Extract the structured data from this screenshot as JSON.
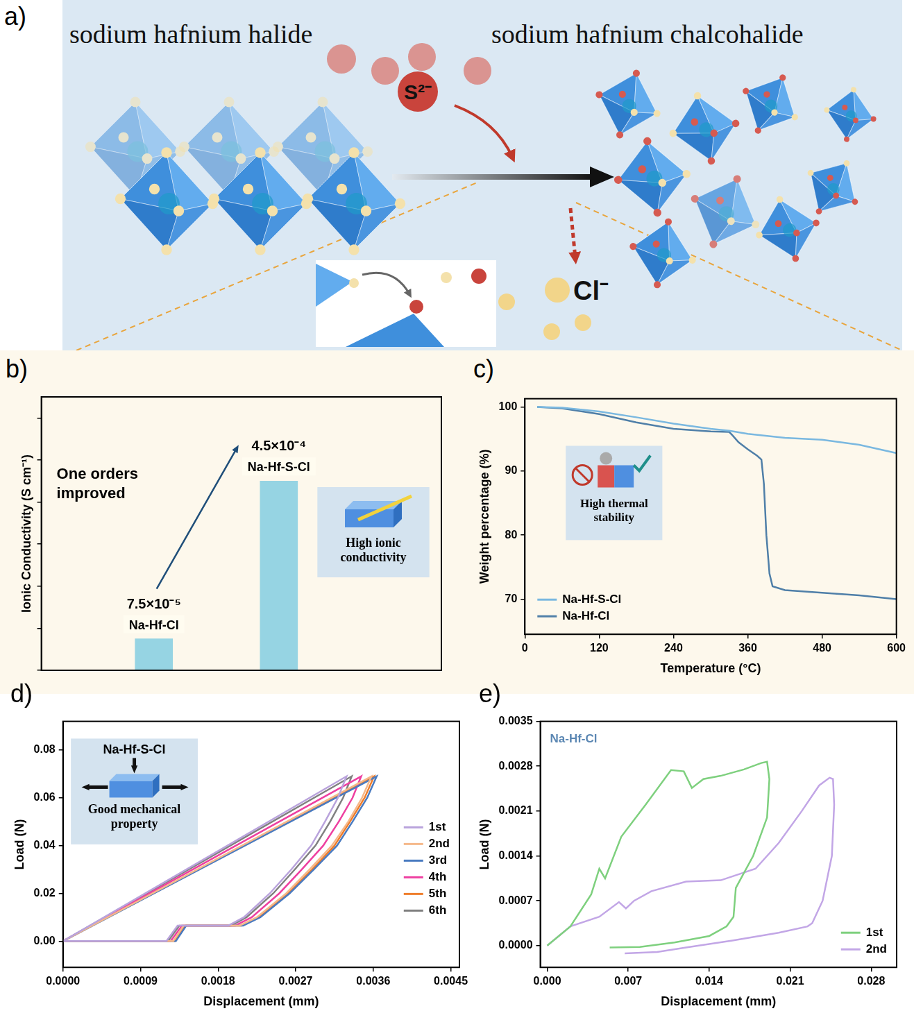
{
  "diagram": {
    "panel": "a)",
    "left_title": "sodium hafnium halide",
    "right_title": "sodium hafnium chalcohalide",
    "incoming_ion": "S²⁻",
    "leaving_ion": "Cl⁻"
  },
  "chart_data": [
    {
      "panel": "b)",
      "type": "bar",
      "y_label": "Ionic Conductivity (S cm⁻¹)",
      "categories": [
        "Na-Hf-Cl",
        "Na-Hf-S-Cl"
      ],
      "values": [
        7.5e-05,
        0.00045
      ],
      "value_labels": [
        "7.5×10⁻⁵",
        "4.5×10⁻⁴"
      ],
      "data_labels": true,
      "color": "#96d4e3",
      "ylim": [
        0,
        0.00065
      ],
      "yticks": [
        0,
        0.0001,
        0.0002,
        0.0003,
        0.0004,
        0.0005,
        0.0006
      ],
      "tick_labels": false,
      "grid": false,
      "annotation": "One orders improved",
      "inset": {
        "text": "High ionic conductivity"
      }
    },
    {
      "panel": "c)",
      "type": "line",
      "x_label": "Temperature (°C)",
      "y_label": "Weight percentage (%)",
      "xlim": [
        0,
        600
      ],
      "xticks": [
        0,
        120,
        240,
        360,
        480,
        600
      ],
      "ylim": [
        64.5,
        101.3
      ],
      "yticks": [
        70,
        80,
        90,
        100
      ],
      "grid": false,
      "legend": "lower left",
      "series": [
        {
          "name": "Na-Hf-S-Cl",
          "color": "#7ab8e0",
          "x": [
            20,
            60,
            120,
            180,
            240,
            300,
            330,
            360,
            420,
            480,
            540,
            600
          ],
          "values": [
            100,
            99.9,
            99.3,
            98.4,
            97.4,
            96.6,
            96.3,
            95.8,
            95.2,
            94.9,
            94.1,
            92.8
          ]
        },
        {
          "name": "Na-Hf-Cl",
          "color": "#4f7fa8",
          "x": [
            20,
            60,
            120,
            180,
            240,
            300,
            330,
            335,
            345,
            360,
            375,
            382,
            386,
            390,
            395,
            400,
            420,
            480,
            540,
            600
          ],
          "values": [
            100,
            99.8,
            98.9,
            97.6,
            96.6,
            96.2,
            96.1,
            95.6,
            94.5,
            93.4,
            92.4,
            91.8,
            88,
            80,
            74,
            72,
            71.4,
            71,
            70.6,
            70
          ]
        }
      ],
      "inset": {
        "text": "High thermal stability"
      }
    },
    {
      "panel": "d)",
      "type": "line",
      "x_label": "Displacement (mm)",
      "y_label": "Load (N)",
      "xlim": [
        0,
        0.0046
      ],
      "xticks": [
        {
          "value": 0,
          "label": "0.0000"
        },
        {
          "value": 0.0009,
          "label": "0.0009"
        },
        {
          "value": 0.0018,
          "label": "0.0018"
        },
        {
          "value": 0.0027,
          "label": "0.0027"
        },
        {
          "value": 0.0036,
          "label": "0.0036"
        },
        {
          "value": 0.0045,
          "label": "0.0045"
        }
      ],
      "ylim": [
        -0.011,
        0.092
      ],
      "yticks": [
        {
          "value": 0,
          "label": "0.00"
        },
        {
          "value": 0.02,
          "label": "0.02"
        },
        {
          "value": 0.04,
          "label": "0.04"
        },
        {
          "value": 0.06,
          "label": "0.06"
        },
        {
          "value": 0.08,
          "label": "0.08"
        }
      ],
      "grid": false,
      "legend": "right",
      "series": [
        {
          "name": "1st",
          "color": "#b9a3dc",
          "x": [
            0,
            0.001645,
            0.00329,
            0.00319,
            0.00304,
            0.00288,
            0.00265,
            0.0024,
            0.0021,
            0.00192,
            0.00133,
            0.0012,
            0
          ],
          "values": [
            0,
            0.0345,
            0.069,
            0.06,
            0.05,
            0.04,
            0.03,
            0.02,
            0.01,
            0.0065,
            0.0065,
            0,
            0
          ]
        },
        {
          "name": "2nd",
          "color": "#f5b88a",
          "x": [
            0,
            0.00179,
            0.00358,
            0.00347,
            0.00331,
            0.00312,
            0.00286,
            0.00259,
            0.00225,
            0.00205,
            0.0014,
            0.00128,
            0
          ],
          "values": [
            0,
            0.0345,
            0.069,
            0.06,
            0.05,
            0.04,
            0.03,
            0.02,
            0.01,
            0.0065,
            0.0065,
            0,
            0
          ]
        },
        {
          "name": "3rd",
          "color": "#4a7bc0",
          "x": [
            0,
            0.00182,
            0.00364,
            0.00353,
            0.00336,
            0.00318,
            0.00291,
            0.00263,
            0.00229,
            0.00209,
            0.00143,
            0.00131,
            0
          ],
          "values": [
            0,
            0.0345,
            0.069,
            0.06,
            0.05,
            0.04,
            0.03,
            0.02,
            0.01,
            0.0065,
            0.0065,
            0,
            0
          ]
        },
        {
          "name": "4th",
          "color": "#ee3fa0",
          "x": [
            0,
            0.00173,
            0.00346,
            0.00336,
            0.0032,
            0.00302,
            0.00277,
            0.00251,
            0.00219,
            0.002,
            0.00138,
            0.00125,
            0
          ],
          "values": [
            0,
            0.0345,
            0.069,
            0.06,
            0.05,
            0.04,
            0.03,
            0.02,
            0.01,
            0.0065,
            0.0065,
            0,
            0
          ]
        },
        {
          "name": "5th",
          "color": "#ef7d2b",
          "x": [
            0,
            0.001805,
            0.00361,
            0.0035,
            0.00333,
            0.00315,
            0.00289,
            0.00261,
            0.00227,
            0.00207,
            0.00142,
            0.0013,
            0
          ],
          "values": [
            0,
            0.0345,
            0.069,
            0.06,
            0.05,
            0.04,
            0.03,
            0.02,
            0.01,
            0.0065,
            0.0065,
            0,
            0
          ]
        },
        {
          "name": "6th",
          "color": "#808080",
          "x": [
            0,
            0.001675,
            0.00335,
            0.00325,
            0.0031,
            0.00293,
            0.00269,
            0.00244,
            0.00213,
            0.00195,
            0.00135,
            0.00122,
            0
          ],
          "values": [
            0,
            0.0345,
            0.069,
            0.06,
            0.05,
            0.04,
            0.03,
            0.02,
            0.01,
            0.0065,
            0.0065,
            0,
            0
          ]
        }
      ],
      "inset": {
        "title": "Na-Hf-S-Cl",
        "text": "Good mechanical property"
      }
    },
    {
      "panel": "e)",
      "type": "line",
      "title": "Na-Hf-Cl",
      "x_label": "Displacement (mm)",
      "y_label": "Load (N)",
      "xlim": [
        -0.0006,
        0.0302
      ],
      "xticks": [
        {
          "value": 0,
          "label": "0.000"
        },
        {
          "value": 0.007,
          "label": "0.007"
        },
        {
          "value": 0.014,
          "label": "0.014"
        },
        {
          "value": 0.021,
          "label": "0.021"
        },
        {
          "value": 0.028,
          "label": "0.028"
        }
      ],
      "ylim": [
        -0.00034,
        0.0035
      ],
      "yticks": [
        {
          "value": 0,
          "label": "0.0000"
        },
        {
          "value": 0.0007,
          "label": "0.0007"
        },
        {
          "value": 0.0014,
          "label": "0.0014"
        },
        {
          "value": 0.0021,
          "label": "0.0021"
        },
        {
          "value": 0.0028,
          "label": "0.0028"
        },
        {
          "value": 0.0035,
          "label": "0.0035"
        }
      ],
      "grid": false,
      "legend": "lower right",
      "series": [
        {
          "name": "1st",
          "color": "#7ed07e",
          "x": [
            0,
            0.002,
            0.0038,
            0.0045,
            0.005,
            0.0064,
            0.0085,
            0.0107,
            0.0118,
            0.0125,
            0.0135,
            0.015,
            0.017,
            0.0185,
            0.019,
            0.0192,
            0.019,
            0.0178,
            0.0166,
            0.0163,
            0.0161,
            0.0155,
            0.014,
            0.011,
            0.008,
            0.0054
          ],
          "values": [
            0,
            0.0003,
            0.0008,
            0.0012,
            0.00105,
            0.0017,
            0.0022,
            0.00274,
            0.00272,
            0.00246,
            0.0026,
            0.00265,
            0.00275,
            0.00285,
            0.00287,
            0.0026,
            0.002,
            0.0014,
            0.001,
            0.0009,
            0.00045,
            0.0003,
            0.00015,
            5e-05,
            -2e-05,
            -3e-05
          ]
        },
        {
          "name": "2nd",
          "color": "#c2a6e6",
          "x": [
            0,
            0.002,
            0.0045,
            0.0062,
            0.0068,
            0.0075,
            0.009,
            0.012,
            0.015,
            0.018,
            0.02,
            0.022,
            0.0235,
            0.0244,
            0.0247,
            0.0248,
            0.0246,
            0.0238,
            0.0229,
            0.0225,
            0.02,
            0.016,
            0.012,
            0.0095,
            0.0067
          ],
          "values": [
            0,
            0.0003,
            0.00045,
            0.00068,
            0.00058,
            0.0007,
            0.00085,
            0.001,
            0.00102,
            0.0012,
            0.0016,
            0.0021,
            0.0025,
            0.00262,
            0.0026,
            0.0022,
            0.0014,
            0.0007,
            0.00035,
            0.0003,
            0.0002,
            8e-05,
            -3e-05,
            -0.0001,
            -0.00012
          ]
        }
      ]
    }
  ]
}
